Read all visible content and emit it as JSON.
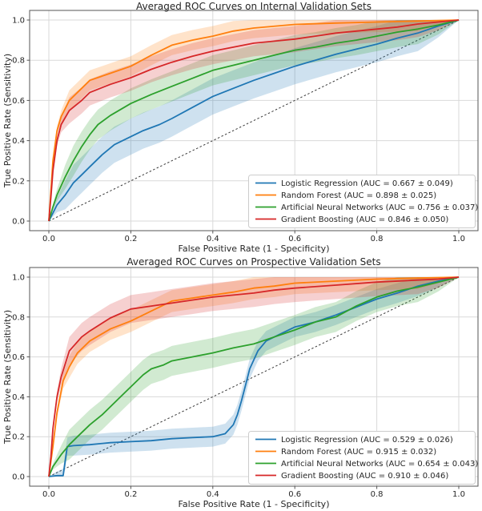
{
  "figure": {
    "background": "#ffffff",
    "text_color": "#262626"
  },
  "colors": {
    "logistic_regression": "#1f77b4",
    "random_forest": "#ff7f0e",
    "artificial_neural_networks": "#2ca02c",
    "gradient_boosting": "#d62728",
    "diagonal_reference": "#3a3a3a",
    "grid": "#d9d9d9",
    "spine": "#555555",
    "legend_border": "#cccccc",
    "legend_background": "#ffffff"
  },
  "chart_data": [
    {
      "type": "line",
      "title": "Averaged ROC Curves on Internal Validation Sets",
      "xlabel": "False Positive Rate (1 - Specificity)",
      "ylabel": "True Positive Rate (Sensitivity)",
      "xlim": [
        -0.05,
        1.05
      ],
      "ylim": [
        -0.05,
        1.05
      ],
      "xticks": [
        "0.0",
        "0.2",
        "0.4",
        "0.6",
        "0.8",
        "1.0"
      ],
      "yticks": [
        "0.0",
        "0.2",
        "0.4",
        "0.6",
        "0.8",
        "1.0"
      ],
      "grid": true,
      "legend_position": "lower right",
      "diagonal_reference": true,
      "series": [
        {
          "name": "logistic-regression",
          "label": "Logistic Regression (AUC = 0.667 ± 0.049)",
          "auc": 0.667,
          "auc_std": 0.049,
          "color": "#1f77b4",
          "band_width": 0.09,
          "x": [
            0,
            0.01,
            0.02,
            0.04,
            0.06,
            0.08,
            0.1,
            0.13,
            0.16,
            0.2,
            0.23,
            0.27,
            0.3,
            0.35,
            0.4,
            0.45,
            0.5,
            0.55,
            0.6,
            0.65,
            0.7,
            0.75,
            0.8,
            0.85,
            0.9,
            0.95,
            1.0
          ],
          "y": [
            0,
            0.04,
            0.08,
            0.13,
            0.19,
            0.23,
            0.27,
            0.33,
            0.38,
            0.42,
            0.45,
            0.48,
            0.51,
            0.565,
            0.62,
            0.66,
            0.7,
            0.735,
            0.77,
            0.8,
            0.83,
            0.855,
            0.88,
            0.91,
            0.935,
            0.97,
            1.0
          ]
        },
        {
          "name": "random-forest",
          "label": "Random Forest (AUC = 0.898 ± 0.025)",
          "auc": 0.898,
          "auc_std": 0.025,
          "color": "#ff7f0e",
          "band_width": 0.05,
          "x": [
            0,
            0.005,
            0.01,
            0.02,
            0.03,
            0.05,
            0.08,
            0.1,
            0.15,
            0.2,
            0.25,
            0.3,
            0.35,
            0.4,
            0.45,
            0.5,
            0.6,
            0.7,
            0.8,
            0.9,
            1.0
          ],
          "y": [
            0,
            0.15,
            0.3,
            0.45,
            0.52,
            0.6,
            0.66,
            0.7,
            0.735,
            0.77,
            0.825,
            0.875,
            0.9,
            0.92,
            0.945,
            0.96,
            0.978,
            0.985,
            0.99,
            0.995,
            1.0
          ]
        },
        {
          "name": "artificial-neural-networks",
          "label": "Artificial Neural Networks (AUC = 0.756 ± 0.037)",
          "auc": 0.756,
          "auc_std": 0.037,
          "color": "#2ca02c",
          "band_width": 0.075,
          "x": [
            0,
            0.01,
            0.02,
            0.04,
            0.06,
            0.08,
            0.1,
            0.12,
            0.15,
            0.2,
            0.25,
            0.3,
            0.35,
            0.4,
            0.45,
            0.5,
            0.55,
            0.6,
            0.65,
            0.7,
            0.75,
            0.8,
            0.85,
            0.9,
            0.95,
            1.0
          ],
          "y": [
            0,
            0.07,
            0.13,
            0.22,
            0.3,
            0.37,
            0.43,
            0.48,
            0.525,
            0.585,
            0.63,
            0.67,
            0.71,
            0.75,
            0.775,
            0.8,
            0.825,
            0.85,
            0.865,
            0.885,
            0.9,
            0.92,
            0.94,
            0.955,
            0.975,
            1.0
          ]
        },
        {
          "name": "gradient-boosting",
          "label": "Gradient Boosting (AUC = 0.846 ± 0.050)",
          "auc": 0.846,
          "auc_std": 0.05,
          "color": "#d62728",
          "band_width": 0.065,
          "x": [
            0,
            0.005,
            0.01,
            0.02,
            0.03,
            0.05,
            0.08,
            0.1,
            0.15,
            0.2,
            0.25,
            0.3,
            0.35,
            0.4,
            0.45,
            0.5,
            0.55,
            0.6,
            0.65,
            0.7,
            0.75,
            0.8,
            0.85,
            0.9,
            0.95,
            1.0
          ],
          "y": [
            0,
            0.12,
            0.25,
            0.4,
            0.48,
            0.55,
            0.6,
            0.64,
            0.68,
            0.713,
            0.755,
            0.79,
            0.82,
            0.845,
            0.865,
            0.885,
            0.895,
            0.905,
            0.92,
            0.935,
            0.945,
            0.955,
            0.965,
            0.98,
            0.99,
            1.0
          ]
        }
      ]
    },
    {
      "type": "line",
      "title": "Averaged ROC Curves on Prospective Validation Sets",
      "xlabel": "False Positive Rate (1 - Specificity)",
      "ylabel": "True Positive Rate (Sensitivity)",
      "xlim": [
        -0.05,
        1.05
      ],
      "ylim": [
        -0.05,
        1.05
      ],
      "xticks": [
        "0.0",
        "0.2",
        "0.4",
        "0.6",
        "0.8",
        "1.0"
      ],
      "yticks": [
        "0.0",
        "0.2",
        "0.4",
        "0.6",
        "0.8",
        "1.0"
      ],
      "grid": true,
      "legend_position": "lower right",
      "diagonal_reference": true,
      "series": [
        {
          "name": "logistic-regression",
          "label": "Logistic Regression (AUC = 0.529 ± 0.026)",
          "auc": 0.529,
          "auc_std": 0.026,
          "color": "#1f77b4",
          "band_width": 0.05,
          "x": [
            0,
            0.02,
            0.035,
            0.04,
            0.045,
            0.06,
            0.1,
            0.15,
            0.2,
            0.25,
            0.3,
            0.35,
            0.4,
            0.43,
            0.45,
            0.46,
            0.47,
            0.48,
            0.49,
            0.51,
            0.53,
            0.55,
            0.57,
            0.6,
            0.65,
            0.7,
            0.75,
            0.8,
            0.85,
            0.9,
            0.95,
            1.0
          ],
          "y": [
            0,
            0.005,
            0.005,
            0.08,
            0.15,
            0.155,
            0.16,
            0.17,
            0.175,
            0.18,
            0.19,
            0.195,
            0.2,
            0.215,
            0.26,
            0.31,
            0.38,
            0.46,
            0.54,
            0.63,
            0.68,
            0.7,
            0.72,
            0.75,
            0.775,
            0.81,
            0.85,
            0.89,
            0.92,
            0.955,
            0.98,
            1.0
          ]
        },
        {
          "name": "random-forest",
          "label": "Random Forest (AUC = 0.915 ± 0.032)",
          "auc": 0.915,
          "auc_std": 0.032,
          "color": "#ff7f0e",
          "band_width": 0.055,
          "x": [
            0,
            0.01,
            0.02,
            0.035,
            0.05,
            0.07,
            0.1,
            0.15,
            0.2,
            0.25,
            0.3,
            0.35,
            0.4,
            0.45,
            0.5,
            0.55,
            0.6,
            0.7,
            0.8,
            0.9,
            1.0
          ],
          "y": [
            0,
            0.15,
            0.32,
            0.48,
            0.55,
            0.62,
            0.68,
            0.74,
            0.78,
            0.83,
            0.88,
            0.895,
            0.91,
            0.925,
            0.945,
            0.955,
            0.97,
            0.98,
            0.99,
            0.995,
            1.0
          ]
        },
        {
          "name": "artificial-neural-networks",
          "label": "Artificial Neural Networks (AUC = 0.654 ± 0.043)",
          "auc": 0.654,
          "auc_std": 0.043,
          "color": "#2ca02c",
          "band_width": 0.075,
          "x": [
            0,
            0.01,
            0.03,
            0.05,
            0.07,
            0.1,
            0.13,
            0.15,
            0.17,
            0.19,
            0.21,
            0.23,
            0.25,
            0.28,
            0.3,
            0.35,
            0.4,
            0.45,
            0.5,
            0.55,
            0.6,
            0.65,
            0.7,
            0.75,
            0.8,
            0.85,
            0.9,
            0.95,
            1.0
          ],
          "y": [
            0,
            0.05,
            0.11,
            0.16,
            0.2,
            0.26,
            0.31,
            0.35,
            0.39,
            0.43,
            0.47,
            0.51,
            0.54,
            0.56,
            0.58,
            0.6,
            0.62,
            0.645,
            0.665,
            0.7,
            0.735,
            0.775,
            0.8,
            0.855,
            0.9,
            0.93,
            0.95,
            0.975,
            1.0
          ]
        },
        {
          "name": "gradient-boosting",
          "label": "Gradient Boosting (AUC = 0.910 ± 0.046)",
          "auc": 0.91,
          "auc_std": 0.046,
          "color": "#d62728",
          "band_width": 0.07,
          "x": [
            0,
            0.005,
            0.01,
            0.02,
            0.03,
            0.05,
            0.08,
            0.1,
            0.15,
            0.2,
            0.25,
            0.3,
            0.35,
            0.4,
            0.45,
            0.5,
            0.55,
            0.6,
            0.7,
            0.8,
            0.9,
            0.95,
            1.0
          ],
          "y": [
            0,
            0.1,
            0.24,
            0.4,
            0.5,
            0.63,
            0.7,
            0.73,
            0.795,
            0.84,
            0.855,
            0.87,
            0.885,
            0.9,
            0.91,
            0.92,
            0.935,
            0.945,
            0.96,
            0.975,
            0.985,
            0.99,
            1.0
          ]
        }
      ]
    }
  ]
}
